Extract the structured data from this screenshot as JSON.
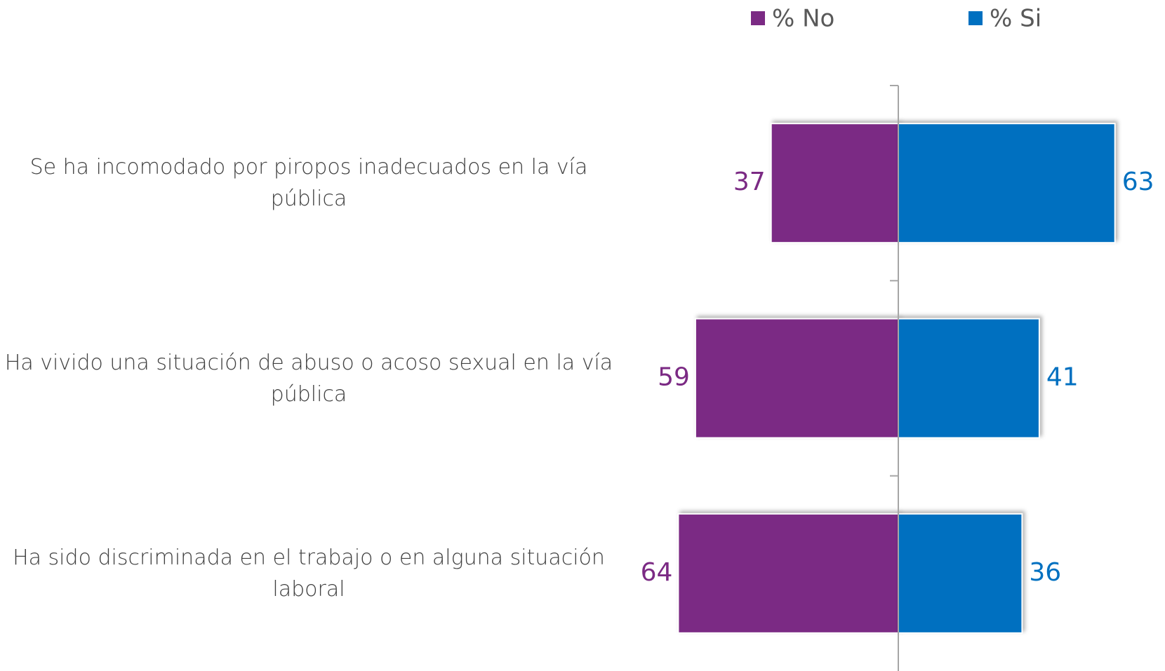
{
  "chart_data": {
    "type": "diverging-bar",
    "categories": [
      "Se ha incomodado por piropos inadecuados en la vía pública",
      "Ha vivido una situación de abuso o acoso sexual en la vía pública",
      "Ha sido discriminada en el trabajo o en alguna situación laboral"
    ],
    "series": [
      {
        "name": "% No",
        "color": "#7b2a84",
        "values": [
          37,
          59,
          64
        ]
      },
      {
        "name": "% Si",
        "color": "#0070c0",
        "values": [
          63,
          41,
          36
        ]
      }
    ]
  }
}
